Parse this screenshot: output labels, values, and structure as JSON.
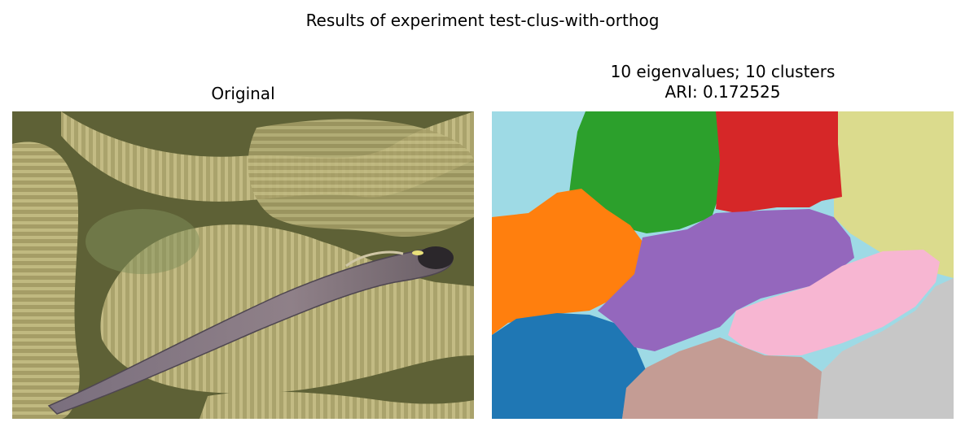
{
  "figure": {
    "suptitle": "Results of experiment test-clus-with-orthog"
  },
  "left_panel": {
    "title": "Original"
  },
  "right_panel": {
    "title_line1": "10 eigenvalues; 10 clusters",
    "title_line2": "ARI: 0.172525",
    "num_clusters": 10,
    "cluster_colors": {
      "cluster-0": "#1f77b4",
      "cluster-1": "#ff7f0e",
      "cluster-2": "#2ca02c",
      "cluster-3": "#d62728",
      "cluster-4": "#9467bd",
      "cluster-5": "#c49c94",
      "cluster-6": "#f7b6d2",
      "cluster-7": "#c7c7c7",
      "cluster-8": "#dbdb8d",
      "cluster-9": "#9edae5"
    }
  },
  "colors": {
    "fish_body": "#8a7e86",
    "coral_light": "#b9b07a",
    "coral_dark": "#5b5f35"
  }
}
